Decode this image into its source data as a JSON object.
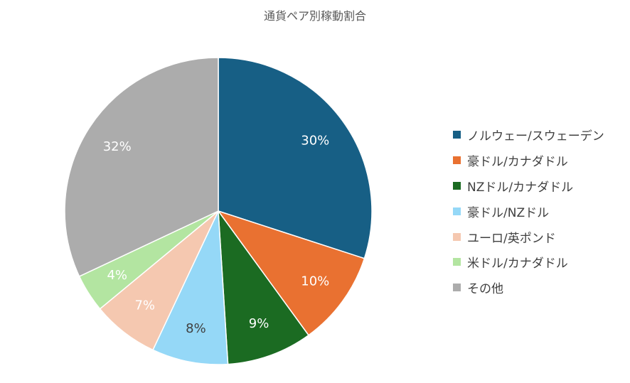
{
  "chart_data": {
    "type": "pie",
    "title": "通貨ペア別稼動割合",
    "categories": [
      "ノルウェー/スウェーデン",
      "豪ドル/カナダドル",
      "NZドル/カナダドル",
      "豪ドル/NZドル",
      "ユーロ/英ポンド",
      "米ドル/カナダドル",
      "その他"
    ],
    "values": [
      30,
      10,
      9,
      8,
      7,
      4,
      32
    ],
    "labels": [
      "30%",
      "10%",
      "9%",
      "8%",
      "7%",
      "4%",
      "32%"
    ],
    "colors": [
      "#175f85",
      "#e97131",
      "#1b6b22",
      "#95d8f7",
      "#f5c8b0",
      "#b3e5a1",
      "#acacac"
    ],
    "label_colors": [
      "#ffffff",
      "#ffffff",
      "#ffffff",
      "#404040",
      "#ffffff",
      "#ffffff",
      "#ffffff"
    ],
    "legend_position": "right"
  }
}
